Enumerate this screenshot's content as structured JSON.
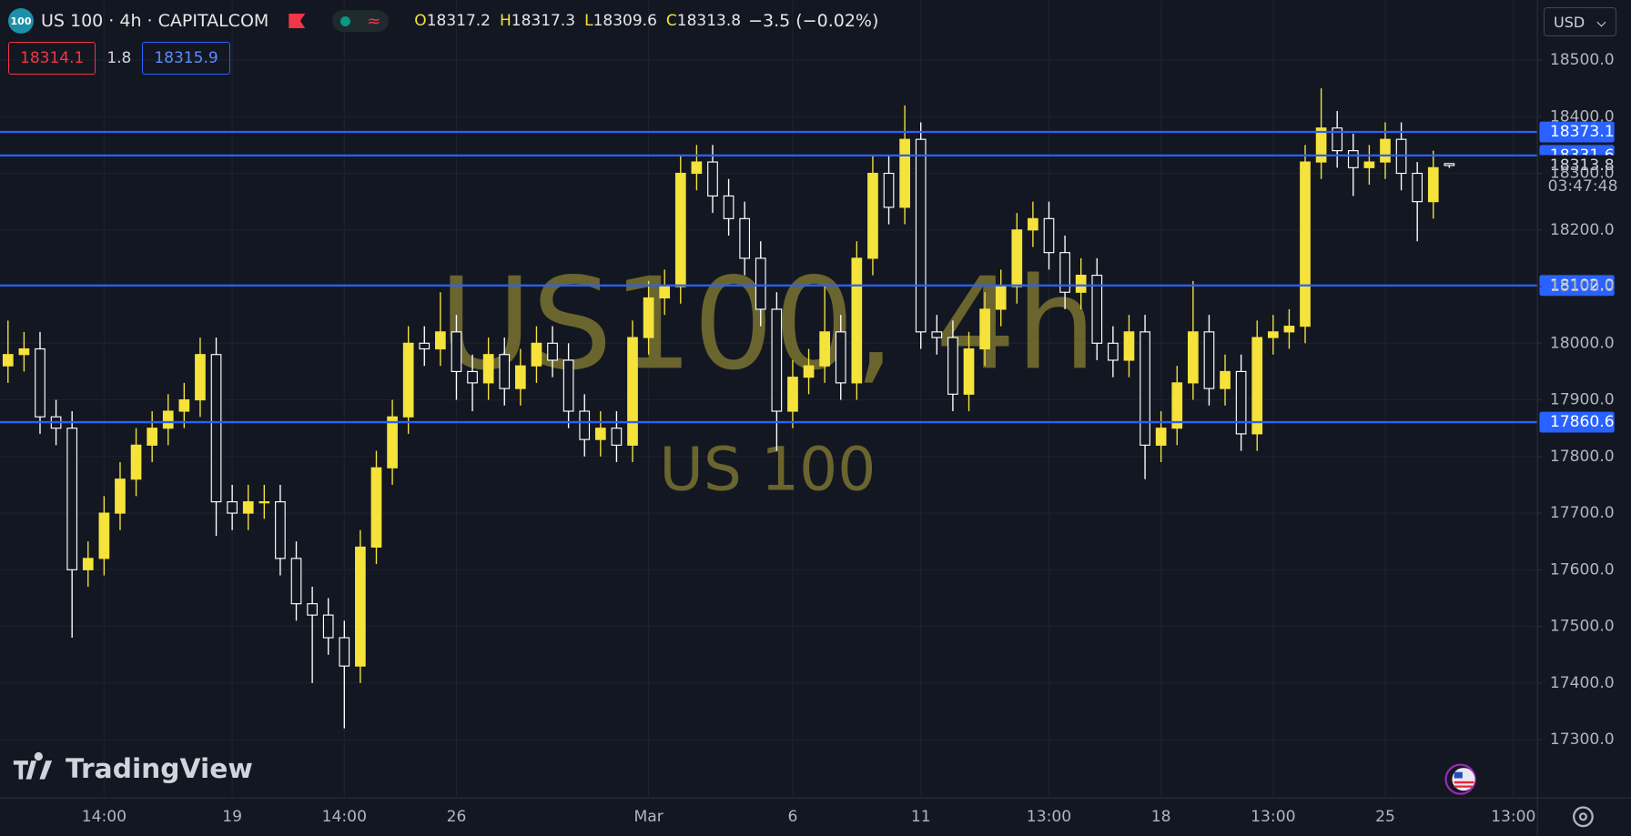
{
  "header": {
    "symbol_icon": "100",
    "symbol": "US 100 · 4h · CAPITALCOM",
    "ohlc": [
      {
        "key": "O",
        "value": "18317.2"
      },
      {
        "key": "H",
        "value": "18317.3"
      },
      {
        "key": "L",
        "value": "18309.6"
      },
      {
        "key": "C",
        "value": "18313.8"
      }
    ],
    "change": "−3.5 (−0.02%)",
    "bid": "18314.1",
    "spread": "1.8",
    "ask": "18315.9",
    "currency": "USD"
  },
  "watermark": {
    "title": "US100, 4h",
    "subtitle": "US 100"
  },
  "logo": "TradingView",
  "chart_data": {
    "type": "candlestick",
    "categories": [
      null,
      null,
      null,
      null,
      null,
      null,
      "14:00",
      null,
      null,
      null,
      null,
      null,
      null,
      null,
      "19",
      null,
      null,
      null,
      null,
      null,
      null,
      "14:00",
      null,
      null,
      null,
      null,
      null,
      null,
      "26",
      null,
      null,
      null,
      null,
      null,
      null,
      null,
      null,
      null,
      null,
      null,
      "Mar",
      null,
      null,
      null,
      null,
      null,
      null,
      null,
      null,
      "6",
      null,
      null,
      null,
      null,
      null,
      null,
      null,
      "11",
      null,
      null,
      null,
      null,
      null,
      null,
      null,
      "13:00",
      null,
      null,
      null,
      null,
      null,
      null,
      "18",
      null,
      null,
      null,
      null,
      null,
      null,
      "13:00",
      null,
      null,
      null,
      null,
      null,
      null,
      "25",
      null,
      null,
      null,
      null,
      null,
      null,
      null,
      "13:00",
      null
    ],
    "open": [
      17960,
      17980,
      17990,
      17870,
      17850,
      17600,
      17620,
      17700,
      17760,
      17820,
      17850,
      17880,
      17900,
      17980,
      17720,
      17700,
      17720,
      17720,
      17620,
      17540,
      17520,
      17480,
      17430,
      17640,
      17780,
      17870,
      18000,
      17990,
      18020,
      17950,
      17930,
      17980,
      17920,
      17960,
      18000,
      17970,
      17880,
      17830,
      17850,
      17820,
      18010,
      18080,
      18100,
      18300,
      18320,
      18260,
      18220,
      18150,
      18060,
      17880,
      17940,
      17960,
      18020,
      17930,
      18150,
      18300,
      18240,
      18360,
      18020,
      18010,
      17910,
      17990,
      18060,
      18100,
      18200,
      18220,
      18160,
      18090,
      18120,
      18000,
      17970,
      18020,
      17820,
      17850,
      17930,
      18020,
      17920,
      17950,
      17840,
      18010,
      18020,
      18030,
      18320,
      18380,
      18340,
      18310,
      18320,
      18360,
      18300,
      18250,
      18317.2,
      null,
      null,
      null,
      null,
      null
    ],
    "high": [
      18040,
      18020,
      18020,
      17900,
      17880,
      17650,
      17730,
      17790,
      17850,
      17880,
      17910,
      17930,
      18010,
      18010,
      17750,
      17750,
      17750,
      17750,
      17650,
      17570,
      17550,
      17510,
      17670,
      17810,
      17900,
      18030,
      18030,
      18090,
      18050,
      17980,
      18010,
      18010,
      17990,
      18030,
      18030,
      18000,
      17910,
      17880,
      17880,
      18040,
      18110,
      18130,
      18330,
      18350,
      18350,
      18290,
      18250,
      18180,
      18090,
      17970,
      17990,
      18100,
      18050,
      18180,
      18330,
      18330,
      18420,
      18390,
      18050,
      18040,
      18020,
      18090,
      18130,
      18230,
      18250,
      18250,
      18190,
      18150,
      18150,
      18030,
      18050,
      18050,
      17880,
      17960,
      18110,
      18050,
      17980,
      17980,
      18040,
      18050,
      18060,
      18350,
      18450,
      18410,
      18370,
      18350,
      18390,
      18390,
      18320,
      18340,
      18317.3,
      null,
      null,
      null,
      null,
      null
    ],
    "low": [
      17930,
      17950,
      17840,
      17820,
      17480,
      17570,
      17590,
      17670,
      17730,
      17790,
      17820,
      17850,
      17870,
      17660,
      17670,
      17670,
      17690,
      17590,
      17510,
      17400,
      17450,
      17320,
      17400,
      17610,
      17750,
      17840,
      17960,
      17960,
      17900,
      17880,
      17900,
      17890,
      17890,
      17930,
      17940,
      17850,
      17800,
      17800,
      17790,
      17790,
      17980,
      18050,
      18070,
      18270,
      18230,
      18190,
      18120,
      18030,
      17810,
      17850,
      17910,
      17930,
      17900,
      17900,
      18120,
      18210,
      18210,
      17990,
      17980,
      17880,
      17880,
      17960,
      18030,
      18070,
      18170,
      18130,
      18060,
      18060,
      17970,
      17940,
      17940,
      17760,
      17790,
      17820,
      17900,
      17890,
      17890,
      17810,
      17810,
      17980,
      17990,
      18000,
      18290,
      18310,
      18260,
      18280,
      18290,
      18270,
      18180,
      18220,
      18309.6,
      null,
      null,
      null,
      null,
      null
    ],
    "close": [
      17980,
      17990,
      17870,
      17850,
      17600,
      17620,
      17700,
      17760,
      17820,
      17850,
      17880,
      17900,
      17980,
      17720,
      17700,
      17720,
      17720,
      17620,
      17540,
      17520,
      17480,
      17430,
      17640,
      17780,
      17870,
      18000,
      17990,
      18020,
      17950,
      17930,
      17980,
      17920,
      17960,
      18000,
      17970,
      17880,
      17830,
      17850,
      17820,
      18010,
      18080,
      18100,
      18300,
      18320,
      18260,
      18220,
      18150,
      18060,
      17880,
      17940,
      17960,
      18020,
      17930,
      18150,
      18300,
      18240,
      18360,
      18020,
      18010,
      17910,
      17990,
      18060,
      18100,
      18200,
      18220,
      18160,
      18090,
      18120,
      18000,
      17970,
      18020,
      17820,
      17850,
      17930,
      18020,
      17920,
      17950,
      17840,
      18010,
      18020,
      18030,
      18320,
      18380,
      18340,
      18310,
      18320,
      18360,
      18300,
      18250,
      18310,
      18313.8,
      null,
      null,
      null,
      null,
      null
    ],
    "up_color": "#f5e23a",
    "down_color": "#ffffff",
    "level_color": "#2962ff",
    "ylim": [
      17197,
      18605
    ],
    "yticks": [
      {
        "value": 17300,
        "label": "17300.0"
      },
      {
        "value": 17400,
        "label": "17400.0"
      },
      {
        "value": 17500,
        "label": "17500.0"
      },
      {
        "value": 17600,
        "label": "17600.0"
      },
      {
        "value": 17700,
        "label": "17700.0"
      },
      {
        "value": 17800,
        "label": "17800.0"
      },
      {
        "value": 17900,
        "label": "17900.0"
      },
      {
        "value": 18000,
        "label": "18000.0"
      },
      {
        "value": 18100,
        "label": "18100.0"
      },
      {
        "value": 18200,
        "label": "18200.0"
      },
      {
        "value": 18300,
        "label": "18300.0"
      },
      {
        "value": 18400,
        "label": "18400.0"
      },
      {
        "value": 18500,
        "label": "18500.0"
      }
    ],
    "grid": true,
    "levels": [
      18373.1,
      18331.6,
      {
        "value": 18102,
        "label": "18102.0"
      },
      17860.6
    ],
    "last_price": 18313.8,
    "countdown": "03:47:48"
  }
}
